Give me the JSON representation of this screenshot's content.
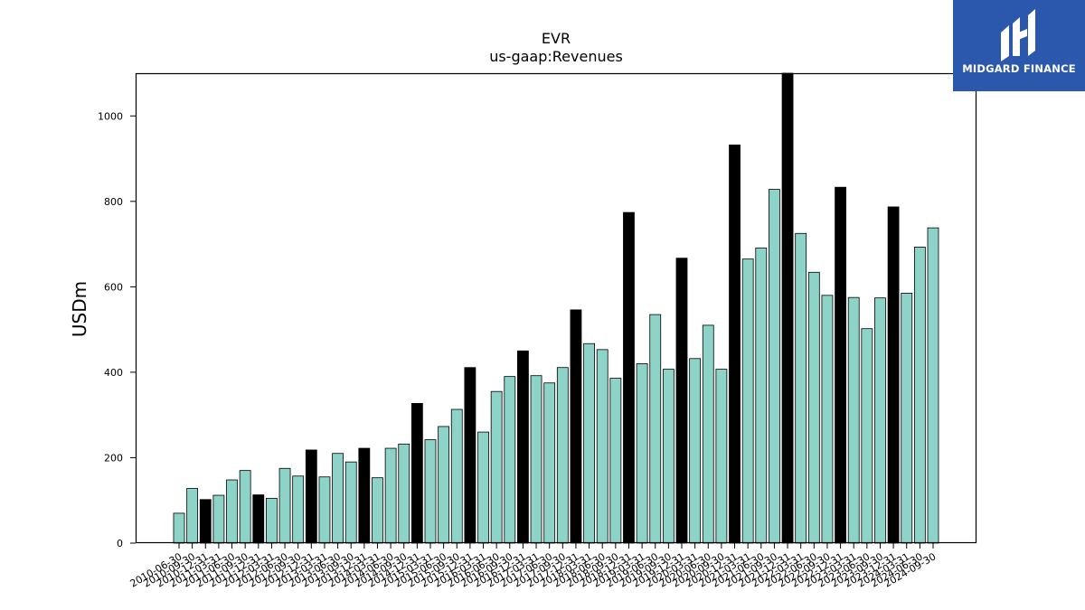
{
  "chart_data": {
    "type": "bar",
    "title": "EVR",
    "subtitle": "us-gaap:Revenues",
    "xlabel": "",
    "ylabel": "USDm",
    "ylim": [
      0,
      1100
    ],
    "yticks": [
      0,
      200,
      400,
      600,
      800,
      1000
    ],
    "grid": false,
    "colors": {
      "quarter": "#8dd3c7",
      "annual": "#000000",
      "edge": "#000000"
    },
    "categories": [
      "2010-06-30",
      "2010-09-30",
      "2010-12-31",
      "2011-03-31",
      "2011-06-30",
      "2011-09-30",
      "2011-12-31",
      "2012-03-31",
      "2012-06-30",
      "2012-09-30",
      "2012-12-31",
      "2013-03-31",
      "2013-06-30",
      "2013-09-30",
      "2013-12-31",
      "2014-03-31",
      "2014-06-30",
      "2014-09-30",
      "2014-12-31",
      "2015-03-31",
      "2015-06-30",
      "2015-09-30",
      "2015-12-31",
      "2016-03-31",
      "2016-06-30",
      "2016-09-30",
      "2016-12-31",
      "2017-03-31",
      "2017-06-30",
      "2017-09-30",
      "2017-12-31",
      "2018-03-31",
      "2018-06-30",
      "2018-09-30",
      "2018-12-31",
      "2019-03-31",
      "2019-06-30",
      "2019-09-30",
      "2019-12-31",
      "2020-03-31",
      "2020-06-30",
      "2020-09-30",
      "2020-12-31",
      "2021-03-31",
      "2021-06-30",
      "2021-09-30",
      "2021-12-31",
      "2022-03-31",
      "2022-06-30",
      "2022-09-30",
      "2022-12-31",
      "2023-03-31",
      "2023-06-30",
      "2023-09-30",
      "2023-12-31",
      "2024-03-31",
      "2024-06-30",
      "2024-09-30"
    ],
    "values": [
      70,
      128,
      102,
      112,
      148,
      170,
      113,
      105,
      175,
      157,
      218,
      155,
      210,
      190,
      222,
      153,
      222,
      232,
      327,
      242,
      273,
      313,
      411,
      260,
      355,
      390,
      450,
      392,
      375,
      411,
      546,
      467,
      453,
      386,
      774,
      420,
      535,
      407,
      667,
      432,
      510,
      407,
      932,
      665,
      691,
      828,
      1102,
      725,
      634,
      580,
      833,
      575,
      502,
      574,
      787,
      585,
      693,
      738
    ],
    "annual": [
      false,
      false,
      true,
      false,
      false,
      false,
      true,
      false,
      false,
      false,
      true,
      false,
      false,
      false,
      true,
      false,
      false,
      false,
      true,
      false,
      false,
      false,
      true,
      false,
      false,
      false,
      true,
      false,
      false,
      false,
      true,
      false,
      false,
      false,
      true,
      false,
      false,
      false,
      true,
      false,
      false,
      false,
      true,
      false,
      false,
      false,
      true,
      false,
      false,
      false,
      true,
      false,
      false,
      false,
      true,
      false,
      false,
      false
    ]
  },
  "logo": {
    "text": "MIDGARD FINANCE",
    "color": "#2b58ad"
  }
}
